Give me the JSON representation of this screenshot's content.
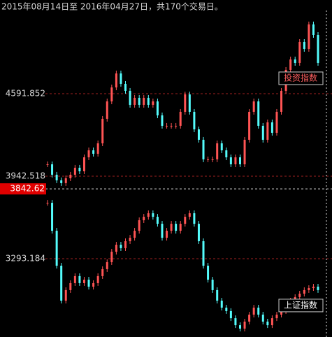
{
  "chart_data": {
    "type": "candlestick",
    "title": "2015年08月14日至 2016年04月27日，共170个交易日。",
    "ylim": [
      2677,
      5329
    ],
    "yticks": [
      3293.184,
      3942.518,
      4591.852
    ],
    "crosshair_y": 3842.62,
    "up_color": "#ff5454",
    "down_color": "#54fcfc",
    "grid": true,
    "series": [
      {
        "name": "投资指数",
        "values": [
          4036,
          3954,
          3910,
          3888,
          3926,
          3954,
          4009,
          3981,
          4091,
          4146,
          4119,
          4201,
          4394,
          4531,
          4641,
          4751,
          4669,
          4614,
          4504,
          4559,
          4504,
          4559,
          4504,
          4531,
          4421,
          4339,
          4339,
          4339,
          4339,
          4449,
          4586,
          4449,
          4311,
          4229,
          4075,
          4075,
          4075,
          4201,
          4146,
          4091,
          4036,
          4091,
          4036,
          4229,
          4449,
          4531,
          4339,
          4229,
          4366,
          4284,
          4449,
          4614,
          4779,
          4861,
          4834,
          4999,
          4944,
          5137,
          5054,
          4834
        ]
      },
      {
        "name": "上证指数",
        "values": [
          3733,
          3513,
          3238,
          2963,
          3046,
          3101,
          3156,
          3101,
          3128,
          3073,
          3101,
          3156,
          3211,
          3266,
          3348,
          3403,
          3376,
          3431,
          3458,
          3513,
          3596,
          3623,
          3651,
          3623,
          3568,
          3458,
          3513,
          3568,
          3513,
          3568,
          3623,
          3651,
          3568,
          3431,
          3238,
          3128,
          3046,
          2963,
          2908,
          2881,
          2825,
          2770,
          2743,
          2798,
          2853,
          2908,
          2853,
          2798,
          2770,
          2825,
          2853,
          2881,
          2908,
          2963,
          2991,
          3018,
          3046,
          3062,
          3073,
          3046
        ]
      }
    ]
  }
}
